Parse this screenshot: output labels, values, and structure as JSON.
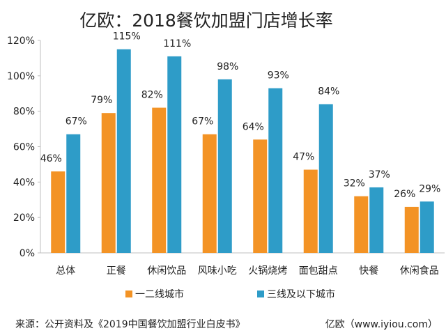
{
  "chart_data": {
    "type": "bar",
    "title": "亿欧：2018餐饮加盟门店增长率",
    "categories": [
      "总体",
      "正餐",
      "休闲饮品",
      "风味小吃",
      "火锅烧烤",
      "面包甜点",
      "快餐",
      "休闲食品"
    ],
    "series": [
      {
        "name": "一二线城市",
        "color": "#f39325",
        "values": [
          46,
          79,
          82,
          67,
          64,
          47,
          32,
          26
        ],
        "labels": [
          "46%",
          "79%",
          "82%",
          "67%",
          "64%",
          "47%",
          "32%",
          "26%"
        ]
      },
      {
        "name": "三线及以下城市",
        "color": "#2e9cc8",
        "values": [
          67,
          115,
          111,
          98,
          93,
          84,
          37,
          29
        ],
        "labels": [
          "67%",
          "115%",
          "111%",
          "98%",
          "93%",
          "84%",
          "37%",
          "29%"
        ]
      }
    ],
    "ylim": [
      0,
      120
    ],
    "yticks": [
      "0%",
      "20%",
      "40%",
      "60%",
      "80%",
      "100%",
      "120%"
    ],
    "grid": false,
    "legend": "bottom"
  },
  "footer": {
    "source": "来源：公开资料及《2019中国餐饮加盟行业白皮书》",
    "brand": "亿欧（www.iyiou.com）"
  }
}
